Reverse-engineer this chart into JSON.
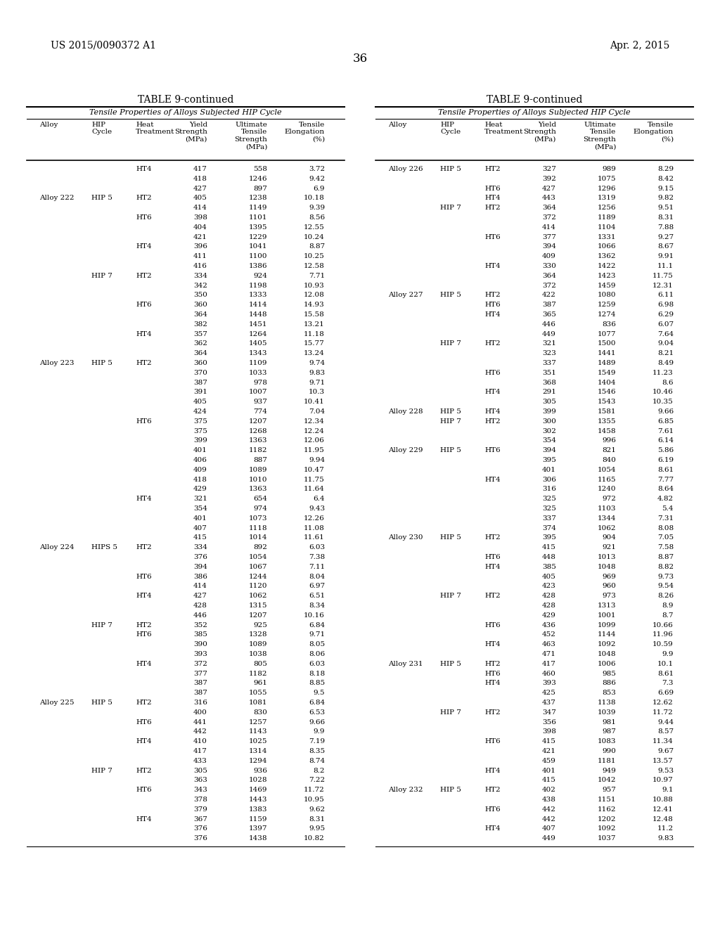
{
  "page_number": "36",
  "patent_left": "US 2015/0090372 A1",
  "patent_right": "Apr. 2, 2015",
  "table_title": "TABLE 9-continued",
  "table_subtitle": "Tensile Properties of Alloys Subjected HIP Cycle",
  "left_data": [
    [
      "",
      "",
      "HT4",
      "417",
      "558",
      "3.72"
    ],
    [
      "",
      "",
      "",
      "418",
      "1246",
      "9.42"
    ],
    [
      "",
      "",
      "",
      "427",
      "897",
      "6.9"
    ],
    [
      "Alloy 222",
      "HIP 5",
      "HT2",
      "405",
      "1238",
      "10.18"
    ],
    [
      "",
      "",
      "",
      "414",
      "1149",
      "9.39"
    ],
    [
      "",
      "",
      "HT6",
      "398",
      "1101",
      "8.56"
    ],
    [
      "",
      "",
      "",
      "404",
      "1395",
      "12.55"
    ],
    [
      "",
      "",
      "",
      "421",
      "1229",
      "10.24"
    ],
    [
      "",
      "",
      "HT4",
      "396",
      "1041",
      "8.87"
    ],
    [
      "",
      "",
      "",
      "411",
      "1100",
      "10.25"
    ],
    [
      "",
      "",
      "",
      "416",
      "1386",
      "12.58"
    ],
    [
      "",
      "HIP 7",
      "HT2",
      "334",
      "924",
      "7.71"
    ],
    [
      "",
      "",
      "",
      "342",
      "1198",
      "10.93"
    ],
    [
      "",
      "",
      "",
      "350",
      "1333",
      "12.08"
    ],
    [
      "",
      "",
      "HT6",
      "360",
      "1414",
      "14.93"
    ],
    [
      "",
      "",
      "",
      "364",
      "1448",
      "15.58"
    ],
    [
      "",
      "",
      "",
      "382",
      "1451",
      "13.21"
    ],
    [
      "",
      "",
      "HT4",
      "357",
      "1264",
      "11.18"
    ],
    [
      "",
      "",
      "",
      "362",
      "1405",
      "15.77"
    ],
    [
      "",
      "",
      "",
      "364",
      "1343",
      "13.24"
    ],
    [
      "Alloy 223",
      "HIP 5",
      "HT2",
      "360",
      "1109",
      "9.74"
    ],
    [
      "",
      "",
      "",
      "370",
      "1033",
      "9.83"
    ],
    [
      "",
      "",
      "",
      "387",
      "978",
      "9.71"
    ],
    [
      "",
      "",
      "",
      "391",
      "1007",
      "10.3"
    ],
    [
      "",
      "",
      "",
      "405",
      "937",
      "10.41"
    ],
    [
      "",
      "",
      "",
      "424",
      "774",
      "7.04"
    ],
    [
      "",
      "",
      "HT6",
      "375",
      "1207",
      "12.34"
    ],
    [
      "",
      "",
      "",
      "375",
      "1268",
      "12.24"
    ],
    [
      "",
      "",
      "",
      "399",
      "1363",
      "12.06"
    ],
    [
      "",
      "",
      "",
      "401",
      "1182",
      "11.95"
    ],
    [
      "",
      "",
      "",
      "406",
      "887",
      "9.94"
    ],
    [
      "",
      "",
      "",
      "409",
      "1089",
      "10.47"
    ],
    [
      "",
      "",
      "",
      "418",
      "1010",
      "11.75"
    ],
    [
      "",
      "",
      "",
      "429",
      "1363",
      "11.64"
    ],
    [
      "",
      "",
      "HT4",
      "321",
      "654",
      "6.4"
    ],
    [
      "",
      "",
      "",
      "354",
      "974",
      "9.43"
    ],
    [
      "",
      "",
      "",
      "401",
      "1073",
      "12.26"
    ],
    [
      "",
      "",
      "",
      "407",
      "1118",
      "11.08"
    ],
    [
      "",
      "",
      "",
      "415",
      "1014",
      "11.61"
    ],
    [
      "Alloy 224",
      "HIPS 5",
      "HT2",
      "334",
      "892",
      "6.03"
    ],
    [
      "",
      "",
      "",
      "376",
      "1054",
      "7.38"
    ],
    [
      "",
      "",
      "",
      "394",
      "1067",
      "7.11"
    ],
    [
      "",
      "",
      "HT6",
      "386",
      "1244",
      "8.04"
    ],
    [
      "",
      "",
      "",
      "414",
      "1120",
      "6.97"
    ],
    [
      "",
      "",
      "HT4",
      "427",
      "1062",
      "6.51"
    ],
    [
      "",
      "",
      "",
      "428",
      "1315",
      "8.34"
    ],
    [
      "",
      "",
      "",
      "446",
      "1207",
      "10.16"
    ],
    [
      "",
      "HIP 7",
      "HT2",
      "352",
      "925",
      "6.84"
    ],
    [
      "",
      "",
      "HT6",
      "385",
      "1328",
      "9.71"
    ],
    [
      "",
      "",
      "",
      "390",
      "1089",
      "8.05"
    ],
    [
      "",
      "",
      "",
      "393",
      "1038",
      "8.06"
    ],
    [
      "",
      "",
      "HT4",
      "372",
      "805",
      "6.03"
    ],
    [
      "",
      "",
      "",
      "377",
      "1182",
      "8.18"
    ],
    [
      "",
      "",
      "",
      "387",
      "961",
      "8.85"
    ],
    [
      "",
      "",
      "",
      "387",
      "1055",
      "9.5"
    ],
    [
      "Alloy 225",
      "HIP 5",
      "HT2",
      "316",
      "1081",
      "6.84"
    ],
    [
      "",
      "",
      "",
      "400",
      "830",
      "6.53"
    ],
    [
      "",
      "",
      "HT6",
      "441",
      "1257",
      "9.66"
    ],
    [
      "",
      "",
      "",
      "442",
      "1143",
      "9.9"
    ],
    [
      "",
      "",
      "HT4",
      "410",
      "1025",
      "7.19"
    ],
    [
      "",
      "",
      "",
      "417",
      "1314",
      "8.35"
    ],
    [
      "",
      "",
      "",
      "433",
      "1294",
      "8.74"
    ],
    [
      "",
      "HIP 7",
      "HT2",
      "305",
      "936",
      "8.2"
    ],
    [
      "",
      "",
      "",
      "363",
      "1028",
      "7.22"
    ],
    [
      "",
      "",
      "HT6",
      "343",
      "1469",
      "11.72"
    ],
    [
      "",
      "",
      "",
      "378",
      "1443",
      "10.95"
    ],
    [
      "",
      "",
      "",
      "379",
      "1383",
      "9.62"
    ],
    [
      "",
      "",
      "HT4",
      "367",
      "1159",
      "8.31"
    ],
    [
      "",
      "",
      "",
      "376",
      "1397",
      "9.95"
    ],
    [
      "",
      "",
      "",
      "376",
      "1438",
      "10.82"
    ]
  ],
  "right_data": [
    [
      "Alloy 226",
      "HIP 5",
      "HT2",
      "327",
      "989",
      "8.29"
    ],
    [
      "",
      "",
      "",
      "392",
      "1075",
      "8.42"
    ],
    [
      "",
      "",
      "HT6",
      "427",
      "1296",
      "9.15"
    ],
    [
      "",
      "",
      "HT4",
      "443",
      "1319",
      "9.82"
    ],
    [
      "",
      "HIP 7",
      "HT2",
      "364",
      "1256",
      "9.51"
    ],
    [
      "",
      "",
      "",
      "372",
      "1189",
      "8.31"
    ],
    [
      "",
      "",
      "",
      "414",
      "1104",
      "7.88"
    ],
    [
      "",
      "",
      "HT6",
      "377",
      "1331",
      "9.27"
    ],
    [
      "",
      "",
      "",
      "394",
      "1066",
      "8.67"
    ],
    [
      "",
      "",
      "",
      "409",
      "1362",
      "9.91"
    ],
    [
      "",
      "",
      "HT4",
      "330",
      "1422",
      "11.1"
    ],
    [
      "",
      "",
      "",
      "364",
      "1423",
      "11.75"
    ],
    [
      "",
      "",
      "",
      "372",
      "1459",
      "12.31"
    ],
    [
      "Alloy 227",
      "HIP 5",
      "HT2",
      "422",
      "1080",
      "6.11"
    ],
    [
      "",
      "",
      "HT6",
      "387",
      "1259",
      "6.98"
    ],
    [
      "",
      "",
      "HT4",
      "365",
      "1274",
      "6.29"
    ],
    [
      "",
      "",
      "",
      "446",
      "836",
      "6.07"
    ],
    [
      "",
      "",
      "",
      "449",
      "1077",
      "7.64"
    ],
    [
      "",
      "HIP 7",
      "HT2",
      "321",
      "1500",
      "9.04"
    ],
    [
      "",
      "",
      "",
      "323",
      "1441",
      "8.21"
    ],
    [
      "",
      "",
      "",
      "337",
      "1489",
      "8.49"
    ],
    [
      "",
      "",
      "HT6",
      "351",
      "1549",
      "11.23"
    ],
    [
      "",
      "",
      "",
      "368",
      "1404",
      "8.6"
    ],
    [
      "",
      "",
      "HT4",
      "291",
      "1546",
      "10.46"
    ],
    [
      "",
      "",
      "",
      "305",
      "1543",
      "10.35"
    ],
    [
      "Alloy 228",
      "HIP 5",
      "HT4",
      "399",
      "1581",
      "9.66"
    ],
    [
      "",
      "HIP 7",
      "HT2",
      "300",
      "1355",
      "6.85"
    ],
    [
      "",
      "",
      "",
      "302",
      "1458",
      "7.61"
    ],
    [
      "",
      "",
      "",
      "354",
      "996",
      "6.14"
    ],
    [
      "Alloy 229",
      "HIP 5",
      "HT6",
      "394",
      "821",
      "5.86"
    ],
    [
      "",
      "",
      "",
      "395",
      "840",
      "6.19"
    ],
    [
      "",
      "",
      "",
      "401",
      "1054",
      "8.61"
    ],
    [
      "",
      "",
      "HT4",
      "306",
      "1165",
      "7.77"
    ],
    [
      "",
      "",
      "",
      "316",
      "1240",
      "8.64"
    ],
    [
      "",
      "",
      "",
      "325",
      "972",
      "4.82"
    ],
    [
      "",
      "",
      "",
      "325",
      "1103",
      "5.4"
    ],
    [
      "",
      "",
      "",
      "337",
      "1344",
      "7.31"
    ],
    [
      "",
      "",
      "",
      "374",
      "1062",
      "8.08"
    ],
    [
      "Alloy 230",
      "HIP 5",
      "HT2",
      "395",
      "904",
      "7.05"
    ],
    [
      "",
      "",
      "",
      "415",
      "921",
      "7.58"
    ],
    [
      "",
      "",
      "HT6",
      "448",
      "1013",
      "8.87"
    ],
    [
      "",
      "",
      "HT4",
      "385",
      "1048",
      "8.82"
    ],
    [
      "",
      "",
      "",
      "405",
      "969",
      "9.73"
    ],
    [
      "",
      "",
      "",
      "423",
      "960",
      "9.54"
    ],
    [
      "",
      "HIP 7",
      "HT2",
      "428",
      "973",
      "8.26"
    ],
    [
      "",
      "",
      "",
      "428",
      "1313",
      "8.9"
    ],
    [
      "",
      "",
      "",
      "429",
      "1001",
      "8.7"
    ],
    [
      "",
      "",
      "HT6",
      "436",
      "1099",
      "10.66"
    ],
    [
      "",
      "",
      "",
      "452",
      "1144",
      "11.96"
    ],
    [
      "",
      "",
      "HT4",
      "463",
      "1092",
      "10.59"
    ],
    [
      "",
      "",
      "",
      "471",
      "1048",
      "9.9"
    ],
    [
      "Alloy 231",
      "HIP 5",
      "HT2",
      "417",
      "1006",
      "10.1"
    ],
    [
      "",
      "",
      "HT6",
      "460",
      "985",
      "8.61"
    ],
    [
      "",
      "",
      "HT4",
      "393",
      "886",
      "7.3"
    ],
    [
      "",
      "",
      "",
      "425",
      "853",
      "6.69"
    ],
    [
      "",
      "",
      "",
      "437",
      "1138",
      "12.62"
    ],
    [
      "",
      "HIP 7",
      "HT2",
      "347",
      "1039",
      "11.72"
    ],
    [
      "",
      "",
      "",
      "356",
      "981",
      "9.44"
    ],
    [
      "",
      "",
      "",
      "398",
      "987",
      "8.57"
    ],
    [
      "",
      "",
      "HT6",
      "415",
      "1083",
      "11.34"
    ],
    [
      "",
      "",
      "",
      "421",
      "990",
      "9.67"
    ],
    [
      "",
      "",
      "",
      "459",
      "1181",
      "13.57"
    ],
    [
      "",
      "",
      "HT4",
      "401",
      "949",
      "9.53"
    ],
    [
      "",
      "",
      "",
      "415",
      "1042",
      "10.97"
    ],
    [
      "Alloy 232",
      "HIP 5",
      "HT2",
      "402",
      "957",
      "9.1"
    ],
    [
      "",
      "",
      "",
      "438",
      "1151",
      "10.88"
    ],
    [
      "",
      "",
      "HT6",
      "442",
      "1162",
      "12.41"
    ],
    [
      "",
      "",
      "",
      "442",
      "1202",
      "12.48"
    ],
    [
      "",
      "",
      "HT4",
      "407",
      "1092",
      "11.2"
    ],
    [
      "",
      "",
      "",
      "449",
      "1037",
      "9.83"
    ]
  ]
}
